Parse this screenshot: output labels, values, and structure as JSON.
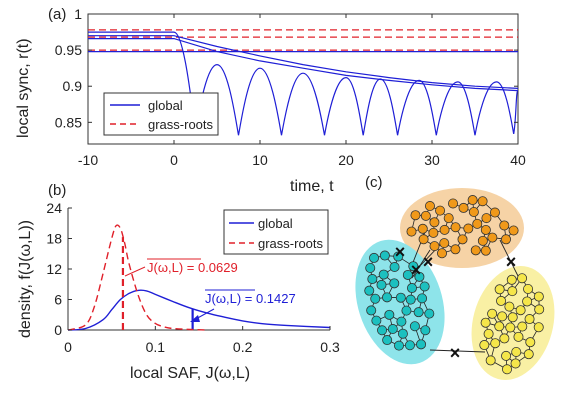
{
  "chart_data": [
    {
      "panel": "(a)",
      "type": "line",
      "xlabel": "time, t",
      "ylabel": "local sync, r(t)",
      "xlim": [
        -10,
        40
      ],
      "ylim": [
        0.82,
        1.0
      ],
      "xticks": [
        "-10",
        "0",
        "10",
        "20",
        "30",
        "40"
      ],
      "yticks": [
        "0.85",
        "0.9",
        "0.95",
        "1"
      ],
      "grid": false,
      "legend_position": "bottom-left",
      "series": [
        {
          "name": "global",
          "color": "#1f1fd6",
          "dash": "solid",
          "description_of_lines": [
            "upper",
            "middle",
            "lower",
            "oscillating"
          ],
          "upper": {
            "x": [
              -10,
              0,
              5,
              10,
              15,
              20,
              25,
              30,
              35,
              40
            ],
            "y": [
              0.97,
              0.97,
              0.955,
              0.942,
              0.93,
              0.92,
              0.912,
              0.905,
              0.9,
              0.897
            ]
          },
          "middle": {
            "x": [
              -10,
              0,
              5,
              10,
              15,
              20,
              25,
              30,
              35,
              40
            ],
            "y": [
              0.966,
              0.966,
              0.948,
              0.935,
              0.925,
              0.915,
              0.908,
              0.902,
              0.897,
              0.894
            ]
          },
          "lower": {
            "x": [
              -10,
              0,
              40
            ],
            "y": [
              0.948,
              0.948,
              0.948
            ]
          },
          "oscillating": {
            "start": [
              -10,
              0.975
            ],
            "step_time": 0,
            "minima_t": [
              2.5,
              7.5,
              12.5,
              17.5,
              22.0,
              26.0,
              30.5,
              35.0,
              39.5
            ],
            "minima_r": [
              0.838,
              0.832,
              0.832,
              0.832,
              0.832,
              0.832,
              0.832,
              0.832,
              0.834
            ],
            "peaks_t": [
              0,
              5.0,
              10.0,
              15.0,
              20.0,
              24.0,
              28.5,
              33.0,
              37.5
            ],
            "peaks_r": [
              0.975,
              0.93,
              0.925,
              0.918,
              0.912,
              0.91,
              0.908,
              0.906,
              0.906
            ]
          }
        },
        {
          "name": "grass-roots",
          "color": "#e0202a",
          "dash": "dashed",
          "lines": [
            {
              "x": [
                -10,
                40
              ],
              "y": [
                0.978,
                0.978
              ]
            },
            {
              "x": [
                -10,
                40
              ],
              "y": [
                0.968,
                0.968
              ]
            },
            {
              "x": [
                -10,
                40
              ],
              "y": [
                0.95,
                0.95
              ]
            }
          ]
        }
      ]
    },
    {
      "panel": "(b)",
      "type": "line",
      "xlabel": "local SAF, J(ω,L)",
      "ylabel": "density, f(J(ω,L))",
      "xlim": [
        0,
        0.3
      ],
      "ylim": [
        0,
        24
      ],
      "xticks": [
        "0",
        "0.1",
        "0.2",
        "0.3"
      ],
      "yticks": [
        "0",
        "6",
        "12",
        "18",
        "24"
      ],
      "grid": false,
      "legend_position": "top-right",
      "series": [
        {
          "name": "global",
          "color": "#1f1fd6",
          "dash": "solid",
          "x": [
            0.0,
            0.02,
            0.04,
            0.05,
            0.06,
            0.07,
            0.08,
            0.09,
            0.1,
            0.12,
            0.14,
            0.16,
            0.18,
            0.2,
            0.22,
            0.25,
            0.3
          ],
          "y": [
            0.0,
            0.3,
            2.0,
            4.0,
            6.0,
            7.2,
            7.8,
            7.7,
            7.0,
            5.6,
            4.3,
            3.3,
            2.5,
            1.8,
            1.3,
            0.9,
            0.5
          ],
          "mean": 0.1427
        },
        {
          "name": "grass-roots",
          "color": "#e0202a",
          "dash": "dashed",
          "x": [
            0.0,
            0.02,
            0.03,
            0.04,
            0.05,
            0.055,
            0.06,
            0.065,
            0.07,
            0.08,
            0.09,
            0.1,
            0.11,
            0.12,
            0.14,
            0.16
          ],
          "y": [
            0.0,
            1.0,
            4.5,
            11.0,
            18.0,
            20.5,
            20.0,
            17.0,
            13.0,
            7.0,
            3.0,
            1.3,
            0.6,
            0.3,
            0.1,
            0.0
          ],
          "mean": 0.0629
        }
      ],
      "annotations": [
        {
          "text": "J(ω,L) = 0.0629",
          "color": "#e0202a"
        },
        {
          "text": "J(ω,L) = 0.1427",
          "color": "#1f1fd6"
        }
      ]
    },
    {
      "panel": "(c)",
      "type": "network",
      "clusters": [
        {
          "color": "#f0991a",
          "bg": "#f6d3a6"
        },
        {
          "color": "#1cc0bf",
          "bg": "#8ee4ea"
        },
        {
          "color": "#f5e64a",
          "bg": "#f9f0a4"
        }
      ],
      "cut_marker": "×"
    }
  ]
}
